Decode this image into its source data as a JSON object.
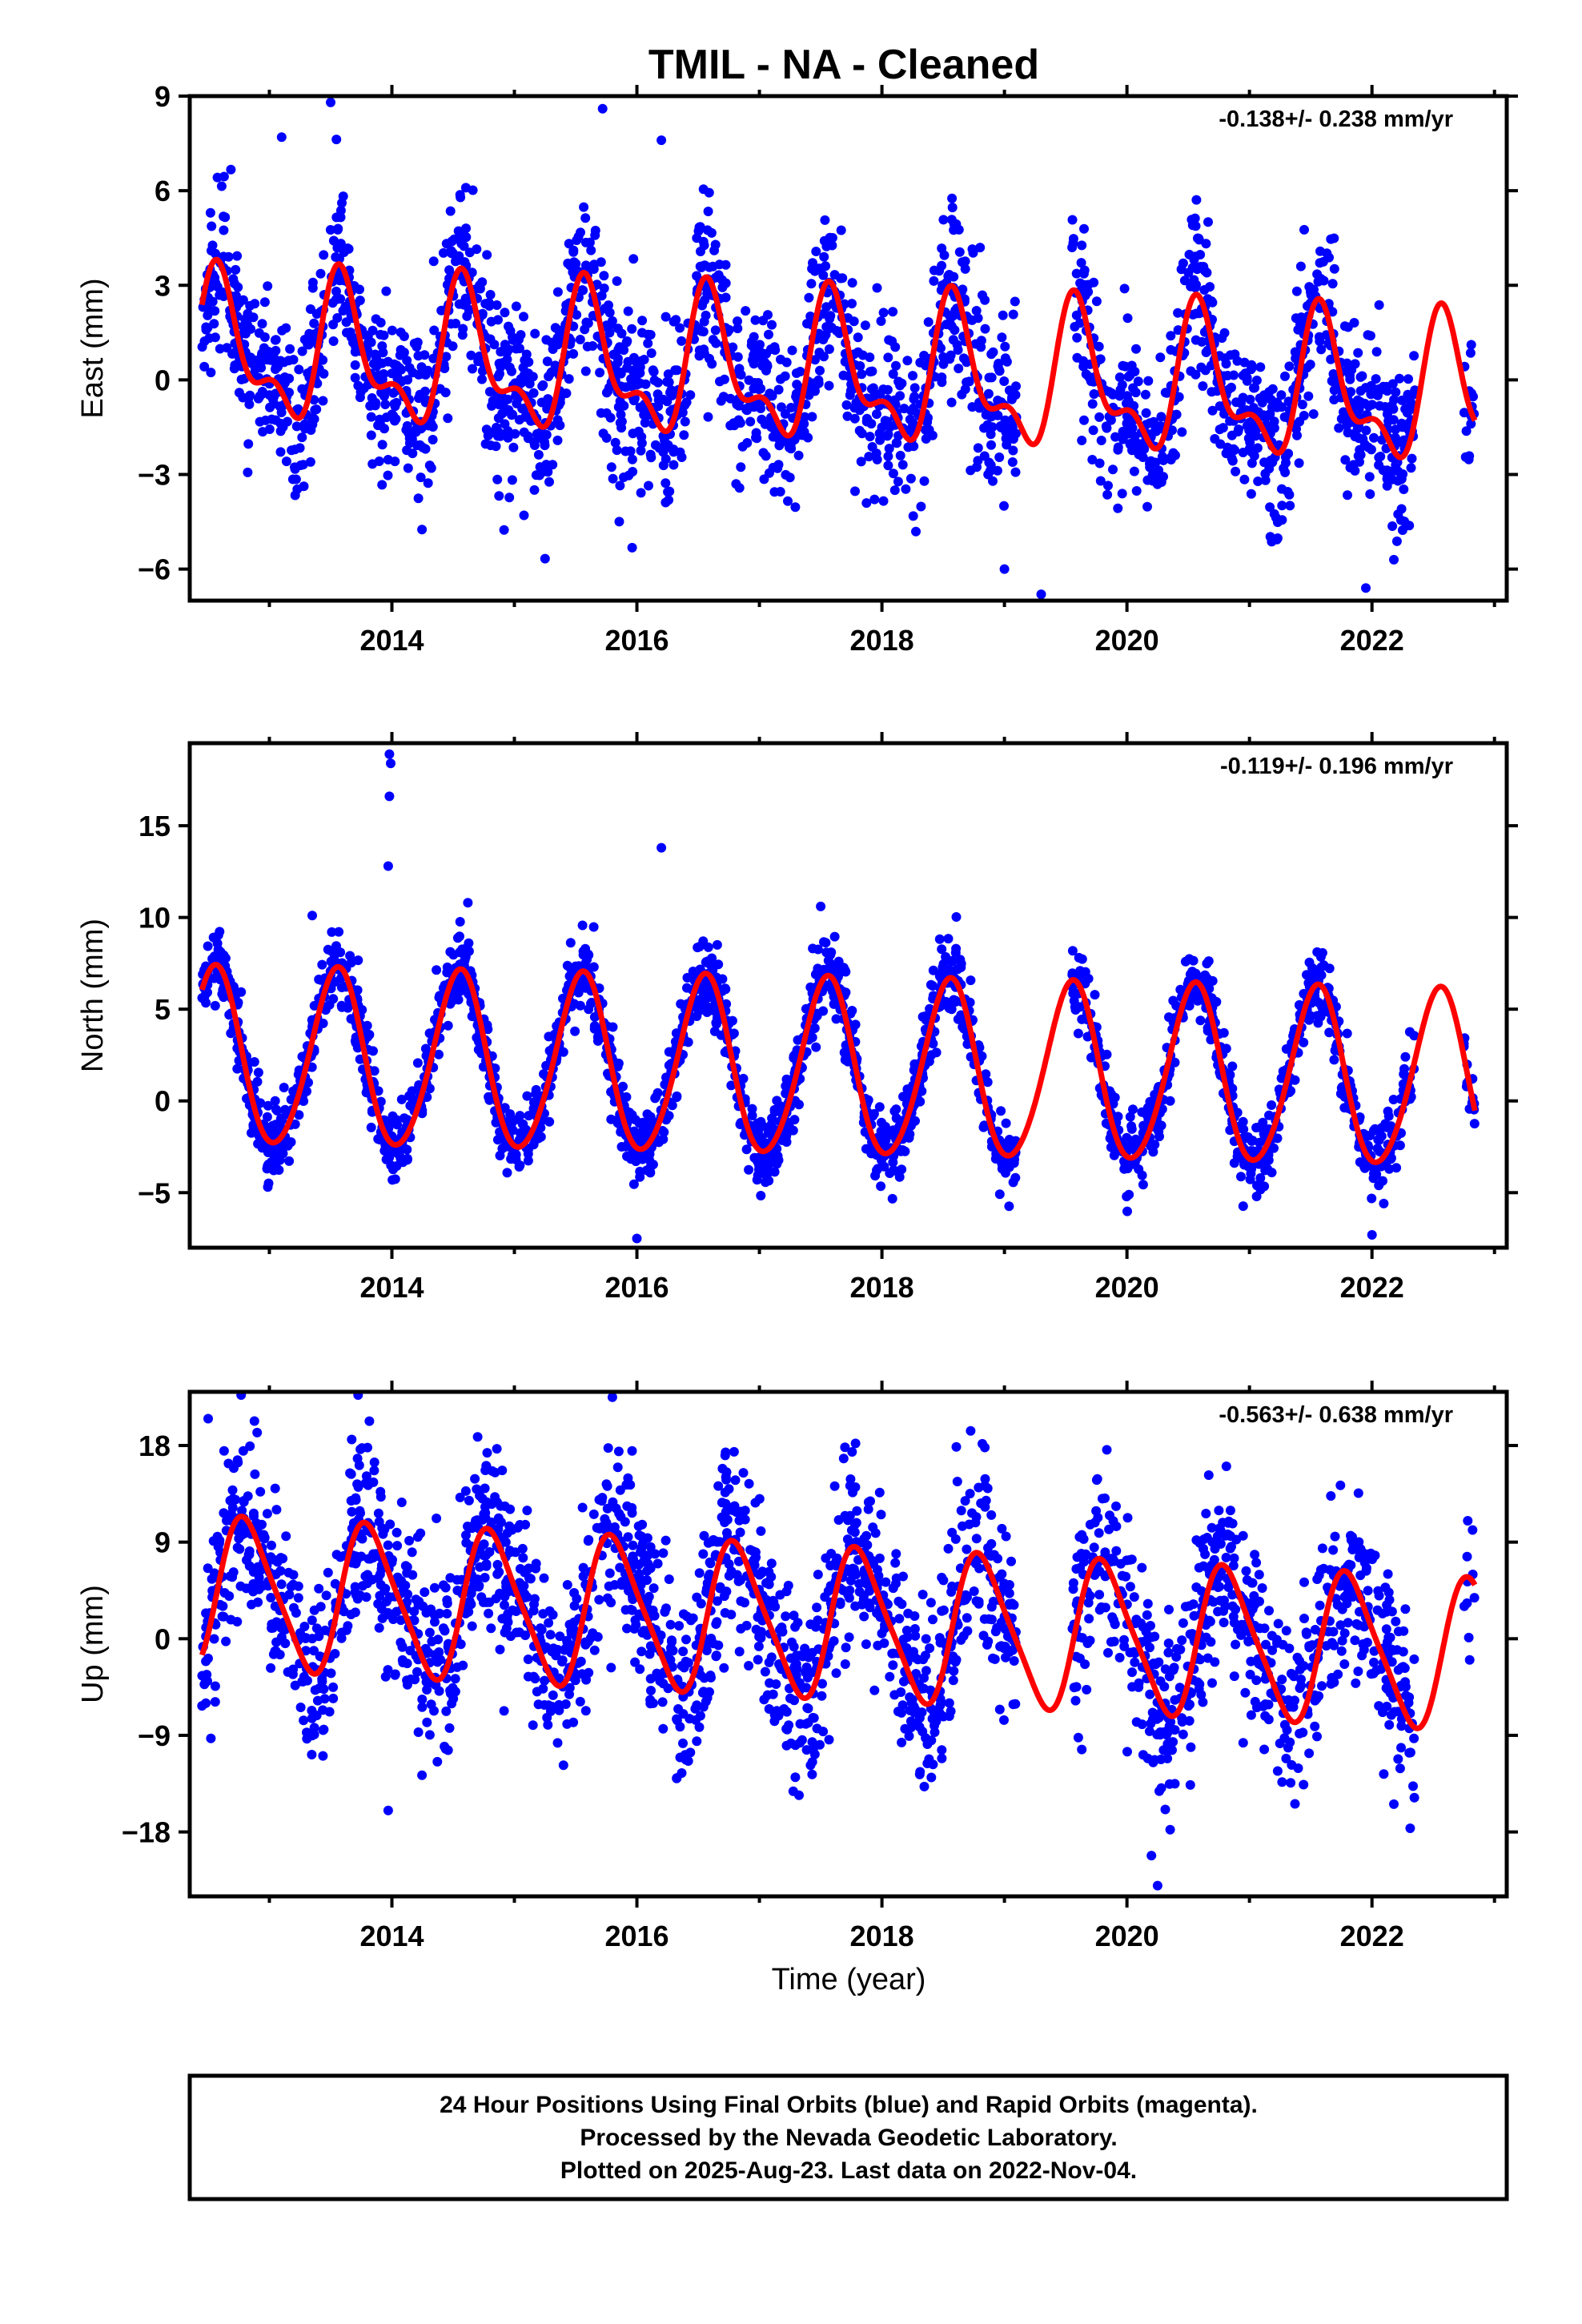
{
  "title": "TMIL  - NA - Cleaned",
  "colors": {
    "points": "#0000ff",
    "model": "#ff0000",
    "frame": "#000000"
  },
  "xaxis": {
    "label": "Time (year)",
    "range": [
      2012.35,
      2023.1
    ],
    "ticks": [
      "2014",
      "2016",
      "2018",
      "2020",
      "2022"
    ],
    "tick_values": [
      2014,
      2016,
      2018,
      2020,
      2022
    ]
  },
  "footer": {
    "line1": "24 Hour Positions Using Final Orbits (blue) and Rapid Orbits (magenta).",
    "line2": "Processed by the Nevada Geodetic Laboratory.",
    "line3": "Plotted on 2025-Aug-23. Last data on 2022-Nov-04."
  },
  "chart_data": [
    {
      "type": "scatter",
      "component": "east",
      "ylabel": "East (mm)",
      "rate": "-0.138+/- 0.238 mm/yr",
      "ylim": [
        -7.0,
        9.0
      ],
      "yticks": [
        -6,
        -3,
        0,
        3,
        6,
        9
      ],
      "ytick_labels": [
        "−6",
        "−3",
        "0",
        "3",
        "6",
        "9"
      ],
      "series": [
        {
          "name": "Final Orbits",
          "kind": "points",
          "n": 2600,
          "amplitude": 2.2,
          "noise_sd": 1.3,
          "outliers": [
            [
              2013.5,
              8.8
            ],
            [
              2015.72,
              8.6
            ],
            [
              2016.2,
              7.6
            ],
            [
              2013.1,
              7.7
            ],
            [
              2019.3,
              -6.8
            ],
            [
              2021.95,
              -6.6
            ],
            [
              2019.0,
              -6.0
            ]
          ]
        },
        {
          "name": "Model",
          "kind": "line",
          "offset": 0.2,
          "trend": -0.138,
          "amp1": 2.0,
          "amp2": 1.0,
          "phase1": 0.6,
          "phase2": 0.05
        }
      ]
    },
    {
      "type": "scatter",
      "component": "north",
      "ylabel": "North (mm)",
      "rate": "-0.119+/- 0.196 mm/yr",
      "ylim": [
        -8.0,
        19.5
      ],
      "yticks": [
        -5,
        0,
        5,
        10,
        15
      ],
      "ytick_labels": [
        "−5",
        "0",
        "5",
        "10",
        "15"
      ],
      "series": [
        {
          "name": "Final Orbits",
          "kind": "points",
          "n": 2600,
          "amplitude": 4.9,
          "noise_sd": 1.0,
          "outliers": [
            [
              2013.98,
              18.9
            ],
            [
              2013.99,
              18.4
            ],
            [
              2013.98,
              16.6
            ],
            [
              2013.97,
              12.8
            ],
            [
              2016.2,
              13.8
            ],
            [
              2013.35,
              10.1
            ],
            [
              2014.62,
              10.8
            ],
            [
              2017.5,
              10.6
            ],
            [
              2016.0,
              -7.5
            ],
            [
              2022.0,
              -7.3
            ]
          ]
        },
        {
          "name": "Model",
          "kind": "line",
          "offset": 1.7,
          "trend": -0.119,
          "amp1": 4.8,
          "amp2": 0.4,
          "phase1": 0.55,
          "phase2": 0.1
        }
      ]
    },
    {
      "type": "scatter",
      "component": "up",
      "ylabel": "Up (mm)",
      "rate": "-0.563+/- 0.638 mm/yr",
      "ylim": [
        -24.0,
        23.0
      ],
      "yticks": [
        -18,
        -9,
        0,
        9,
        18
      ],
      "ytick_labels": [
        "−18",
        "−9",
        "0",
        "9",
        "18"
      ],
      "series": [
        {
          "name": "Final Orbits",
          "kind": "points",
          "n": 2500,
          "amplitude": 7.0,
          "noise_sd": 4.2,
          "outliers": [
            [
              2012.5,
              20.5
            ],
            [
              2012.9,
              19.2
            ],
            [
              2015.8,
              22.5
            ],
            [
              2014.7,
              18.8
            ],
            [
              2020.25,
              -23.0
            ],
            [
              2013.97,
              -16.0
            ],
            [
              2020.2,
              -20.2
            ]
          ]
        },
        {
          "name": "Model",
          "kind": "line",
          "offset": 1.5,
          "trend": -0.563,
          "amp1": 6.8,
          "amp2": 1.2,
          "phase1": 0.82,
          "phase2": 0.2
        }
      ]
    }
  ]
}
